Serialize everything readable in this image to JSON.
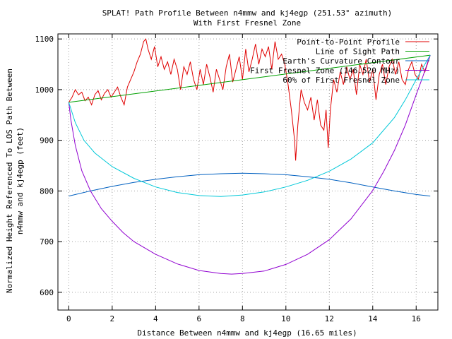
{
  "chart_data": {
    "type": "line",
    "title": "SPLAT! Path Profile Between n4mmw and kj4egp (251.53° azimuth)",
    "subtitle": "With First Fresnel Zone",
    "xlabel": "Distance Between n4mmw and kj4egp (16.65 miles)",
    "ylabel_line1": "Normalized Height Referenced To LOS Path Between",
    "ylabel_line2": "n4mmw and kj4egp (feet)",
    "xlim": [
      -0.5,
      17.0
    ],
    "ylim": [
      565,
      1110
    ],
    "xticks": [
      0,
      2,
      4,
      6,
      8,
      10,
      12,
      14,
      16
    ],
    "yticks": [
      600,
      700,
      800,
      900,
      1000,
      1100
    ],
    "grid": true,
    "legend_position": "top-right",
    "series": [
      {
        "name": "Point-to-Point Profile",
        "color": "#e00000",
        "x": [
          0,
          0.15,
          0.3,
          0.45,
          0.6,
          0.75,
          0.9,
          1.05,
          1.2,
          1.35,
          1.5,
          1.65,
          1.8,
          1.95,
          2.1,
          2.25,
          2.4,
          2.55,
          2.7,
          2.85,
          3.0,
          3.15,
          3.3,
          3.45,
          3.55,
          3.65,
          3.8,
          3.95,
          4.1,
          4.25,
          4.4,
          4.55,
          4.7,
          4.85,
          5.0,
          5.15,
          5.3,
          5.45,
          5.6,
          5.75,
          5.9,
          6.05,
          6.2,
          6.35,
          6.5,
          6.65,
          6.8,
          6.95,
          7.1,
          7.25,
          7.4,
          7.55,
          7.7,
          7.85,
          8.0,
          8.15,
          8.3,
          8.45,
          8.6,
          8.75,
          8.9,
          9.05,
          9.2,
          9.35,
          9.5,
          9.65,
          9.8,
          9.95,
          10.1,
          10.25,
          10.4,
          10.45,
          10.55,
          10.7,
          10.85,
          11.0,
          11.15,
          11.3,
          11.45,
          11.6,
          11.75,
          11.85,
          11.95,
          12.05,
          12.2,
          12.35,
          12.5,
          12.65,
          12.8,
          12.95,
          13.1,
          13.25,
          13.4,
          13.55,
          13.7,
          13.85,
          14.0,
          14.15,
          14.3,
          14.45,
          14.6,
          14.75,
          14.9,
          15.05,
          15.2,
          15.35,
          15.5,
          15.65,
          15.8,
          15.95,
          16.1,
          16.25,
          16.4,
          16.55,
          16.65
        ],
        "values": [
          975,
          985,
          1000,
          990,
          995,
          978,
          985,
          970,
          990,
          998,
          980,
          993,
          1000,
          985,
          995,
          1005,
          985,
          970,
          1005,
          1020,
          1035,
          1055,
          1070,
          1095,
          1100,
          1080,
          1060,
          1085,
          1045,
          1065,
          1040,
          1055,
          1030,
          1060,
          1040,
          1000,
          1045,
          1030,
          1055,
          1020,
          1000,
          1040,
          1010,
          1050,
          1025,
          995,
          1040,
          1020,
          1000,
          1045,
          1070,
          1015,
          1040,
          1065,
          1020,
          1080,
          1035,
          1060,
          1090,
          1050,
          1080,
          1065,
          1085,
          1040,
          1095,
          1060,
          1070,
          1050,
          1010,
          960,
          900,
          860,
          930,
          1000,
          975,
          960,
          985,
          940,
          980,
          930,
          920,
          960,
          885,
          960,
          1020,
          995,
          1035,
          1010,
          1045,
          1020,
          1040,
          990,
          1050,
          1030,
          1060,
          1015,
          1040,
          980,
          1030,
          1050,
          1010,
          1045,
          1060,
          1030,
          1055,
          1020,
          1010,
          1040,
          1055,
          1030,
          1020,
          1050,
          1035,
          1055,
          1068
        ]
      },
      {
        "name": "Line of Sight Path",
        "color": "#00a000",
        "x": [
          0,
          16.65
        ],
        "values": [
          975,
          1068
        ]
      },
      {
        "name": "Earth's Curvature Contour",
        "color": "#0060c0",
        "x": [
          0,
          1,
          2,
          3,
          4,
          5,
          6,
          7,
          8,
          9,
          10,
          11,
          12,
          13,
          14,
          15,
          16,
          16.65
        ],
        "values": [
          790,
          800,
          809,
          817,
          823,
          828,
          832,
          834,
          835,
          834,
          832,
          828,
          823,
          816,
          808,
          800,
          793,
          790
        ]
      },
      {
        "name": "First Fresnel Zone (146.520 MHz)",
        "color": "#9000d0",
        "x": [
          0,
          0.1,
          0.3,
          0.6,
          1.0,
          1.5,
          2.0,
          2.5,
          3.0,
          4.0,
          5.0,
          6.0,
          7.0,
          7.5,
          8.0,
          9.0,
          10.0,
          11.0,
          12.0,
          13.0,
          14.0,
          14.5,
          15.0,
          15.5,
          16.0,
          16.3,
          16.5,
          16.65
        ],
        "values": [
          975,
          940,
          890,
          840,
          800,
          765,
          740,
          718,
          700,
          675,
          656,
          643,
          637,
          636,
          637,
          642,
          655,
          675,
          704,
          745,
          801,
          838,
          880,
          930,
          990,
          1025,
          1050,
          1068
        ]
      },
      {
        "name": "60% of First Fresnel Zone",
        "color": "#00c8d8",
        "x": [
          0,
          0.3,
          0.7,
          1.2,
          2.0,
          3.0,
          4.0,
          5.0,
          6.0,
          7.0,
          8.0,
          9.0,
          10.0,
          11.0,
          12.0,
          13.0,
          14.0,
          15.0,
          15.5,
          16.0,
          16.4,
          16.65
        ],
        "values": [
          975,
          935,
          900,
          875,
          848,
          825,
          808,
          797,
          791,
          789,
          792,
          798,
          808,
          821,
          839,
          863,
          895,
          945,
          980,
          1020,
          1050,
          1068
        ]
      }
    ]
  }
}
